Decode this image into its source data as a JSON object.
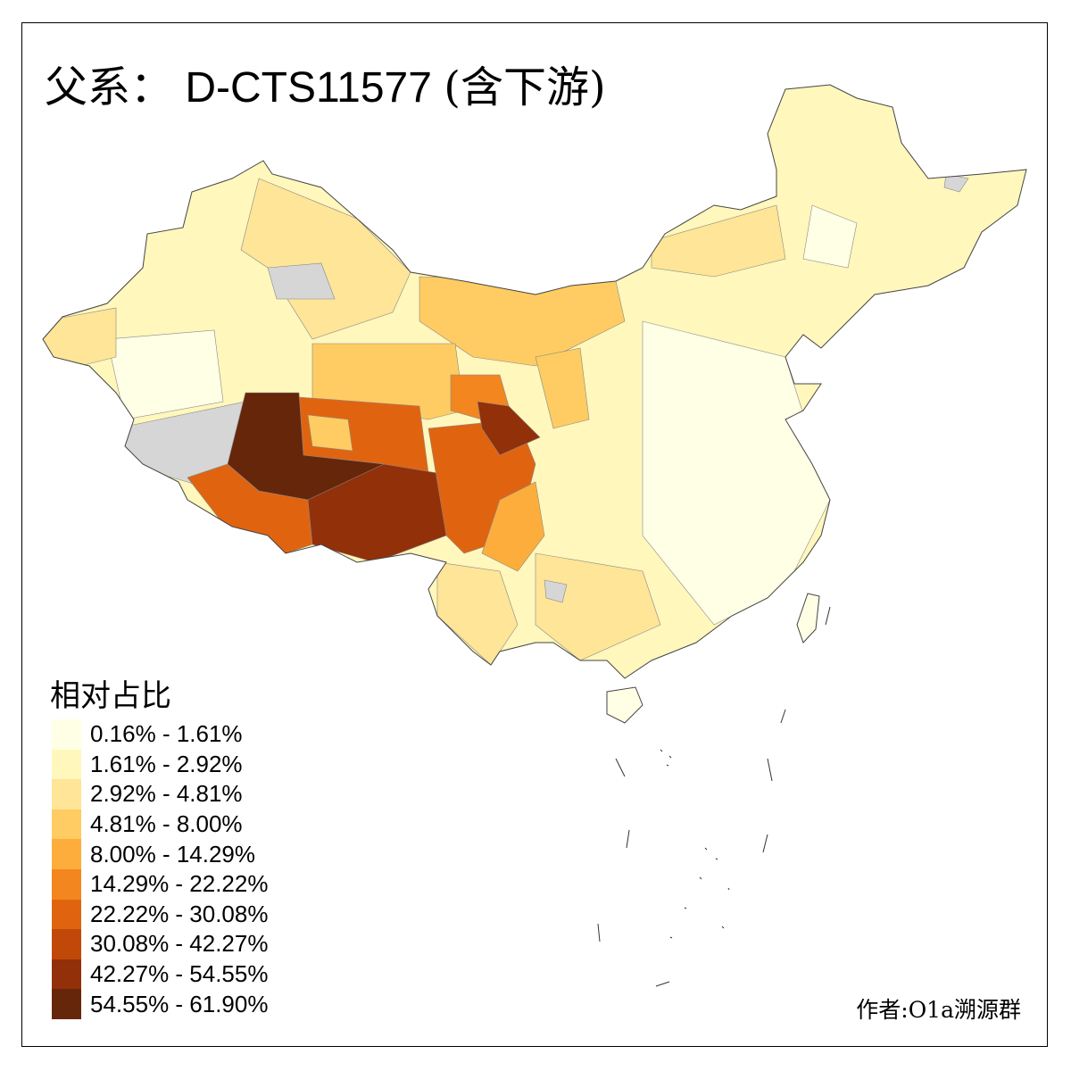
{
  "title": {
    "prefix": "父系：",
    "haplogroup": "D-CTS11577",
    "suffix": "(含下游)"
  },
  "legend": {
    "title": "相对占比",
    "items": [
      {
        "label": "0.16% - 1.61%",
        "color": "#ffffe5"
      },
      {
        "label": "1.61% - 2.92%",
        "color": "#fff7bc"
      },
      {
        "label": "2.92% - 4.81%",
        "color": "#fee597"
      },
      {
        "label": "4.81% - 8.00%",
        "color": "#fecc62"
      },
      {
        "label": "8.00% - 14.29%",
        "color": "#fdad3c"
      },
      {
        "label": "14.29% - 22.22%",
        "color": "#f3861f"
      },
      {
        "label": "22.22% - 30.08%",
        "color": "#e06410"
      },
      {
        "label": "30.08% - 42.27%",
        "color": "#c04808"
      },
      {
        "label": "42.27% - 54.55%",
        "color": "#92300a"
      },
      {
        "label": "54.55% - 61.90%",
        "color": "#66260a"
      }
    ],
    "no_data_color": "#d6d6d6"
  },
  "credit": "作者:O1a溯源群"
}
